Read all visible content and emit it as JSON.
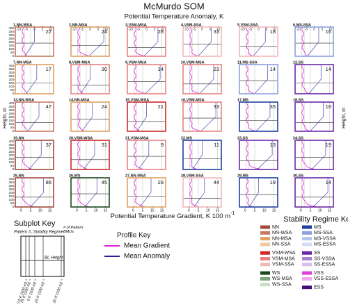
{
  "chart_data": {
    "type": "panels",
    "title": "McMurdo SOM",
    "subtitle": "Potential Temperature Anomaly, K",
    "x_label": "Potential Temperature Gradient, K 100 m",
    "x_label_exp": "-1",
    "y_label": "Height, m",
    "ylim": [
      0,
      420
    ],
    "yticks": [
      0,
      50,
      100,
      150,
      200,
      250,
      300,
      350,
      400
    ],
    "anomaly_xlim": [
      -12,
      12
    ],
    "anomaly_xticks": [
      -10,
      -5,
      0,
      5,
      10
    ],
    "gradient_xlim": [
      -3,
      17
    ],
    "gradient_xticks": [
      0,
      5,
      10,
      15
    ],
    "panels": [
      {
        "label": "1,NN-WSA",
        "count": 22,
        "regime": "NN-WSA"
      },
      {
        "label": "2,NN-MSA",
        "count": 24,
        "regime": "NN-MSA"
      },
      {
        "label": "3,VSM-MSA",
        "count": 28,
        "regime": "VSM-MSA"
      },
      {
        "label": "4,VSM-SSA",
        "count": 33,
        "regime": "VSM-SSA"
      },
      {
        "label": "5,VSM-SSA",
        "count": 18,
        "regime": "VSM-SSA"
      },
      {
        "label": "6,MS-SSA",
        "count": 16,
        "regime": "MS-SSA"
      },
      {
        "label": "7,NN-MSA",
        "count": 17,
        "regime": "NN-MSA"
      },
      {
        "label": "8,VSM-MSA",
        "count": 30,
        "regime": "VSM-MSA"
      },
      {
        "label": "9,VSM-MSA",
        "count": 14,
        "regime": "VSM-MSA"
      },
      {
        "label": "10,VSM-MSA",
        "count": 23,
        "regime": "VSM-MSA"
      },
      {
        "label": "11,MS-SSA",
        "count": 14,
        "regime": "MS-SSA"
      },
      {
        "label": "12,SS",
        "count": 14,
        "regime": "SS"
      },
      {
        "label": "13,NN-WSA",
        "count": 47,
        "regime": "NN-WSA"
      },
      {
        "label": "14,NN-MSA",
        "count": 24,
        "regime": "NN-MSA"
      },
      {
        "label": "15,VSM-WSA",
        "count": 21,
        "regime": "VSM-WSA"
      },
      {
        "label": "16,VSM-MSA",
        "count": 33,
        "regime": "VSM-MSA"
      },
      {
        "label": "17,MS",
        "count": 35,
        "regime": "MS"
      },
      {
        "label": "18,SS",
        "count": 16,
        "regime": "SS"
      },
      {
        "label": "19,NN",
        "count": 37,
        "regime": "NN"
      },
      {
        "label": "20,VSM-WSA",
        "count": 31,
        "regime": "VSM-WSA"
      },
      {
        "label": "21,VSM-MSA",
        "count": 9,
        "regime": "VSM-MSA"
      },
      {
        "label": "22,MS",
        "count": 11,
        "regime": "MS"
      },
      {
        "label": "23,SS",
        "count": 13,
        "regime": "SS"
      },
      {
        "label": "24,SS",
        "count": 19,
        "regime": "SS"
      },
      {
        "label": "25,NN",
        "count": 86,
        "regime": "NN"
      },
      {
        "label": "26,WS",
        "count": 45,
        "regime": "WS"
      },
      {
        "label": "27,NN-MSA",
        "count": 29,
        "regime": "NN-MSA"
      },
      {
        "label": "28,VSM-SSA",
        "count": 44,
        "regime": "VSM-SSA"
      },
      {
        "label": "29,MS",
        "count": 19,
        "regime": "MS"
      },
      {
        "label": "30,SS",
        "count": 14,
        "regime": "SS"
      }
    ],
    "subplot_key": {
      "title": "Subplot Key",
      "subtitle": "Pattern #, Stability Regime",
      "count_label": "# of Pattern BMUs",
      "bl_label": "BL Height",
      "thresholds": [
        "0.5 K (100 m)⁻¹",
        "1.75 K (100 m)⁻¹",
        "5 K (100 m)⁻¹",
        "15 K (100 m)⁻¹",
        "30 K (100 m)⁻¹"
      ]
    },
    "profile_key": {
      "title": "Profile Key",
      "items": [
        {
          "name": "Mean Gradient",
          "color": "#e020d0"
        },
        {
          "name": "Mean Anomaly",
          "color": "#2020a0"
        }
      ]
    },
    "regime_key": {
      "title": "Stability Regime Key",
      "items": [
        {
          "name": "NN",
          "color": "#a04a3a"
        },
        {
          "name": "NN-WSA",
          "color": "#c87860"
        },
        {
          "name": "NN-MSA",
          "color": "#e0a060"
        },
        {
          "name": "NN-SSA",
          "color": "#f0c8a0"
        },
        {
          "name": "VSM-WSA",
          "color": "#d02828"
        },
        {
          "name": "VSM-MSA",
          "color": "#e88080"
        },
        {
          "name": "VSM-SSA",
          "color": "#f2b8b8"
        },
        {
          "name": "WS",
          "color": "#1a4a1a"
        },
        {
          "name": "WS-MSA",
          "color": "#78a878"
        },
        {
          "name": "WS-SSA",
          "color": "#c8dcc8"
        },
        {
          "name": "MS",
          "color": "#1f3fa0"
        },
        {
          "name": "MS-SSA",
          "color": "#8ca0e0"
        },
        {
          "name": "MS-VSSA",
          "color": "#b4c4ec"
        },
        {
          "name": "MS-ESSA",
          "color": "#d4dcf4"
        },
        {
          "name": "SS",
          "color": "#6a28a8"
        },
        {
          "name": "SS-VSSA",
          "color": "#a880d0"
        },
        {
          "name": "SS-ESSA",
          "color": "#d4c0ec"
        },
        {
          "name": "VSS",
          "color": "#e040e0"
        },
        {
          "name": "VSS-ESSA",
          "color": "#f4a8f4"
        },
        {
          "name": "ESS",
          "color": "#401078"
        }
      ]
    }
  }
}
